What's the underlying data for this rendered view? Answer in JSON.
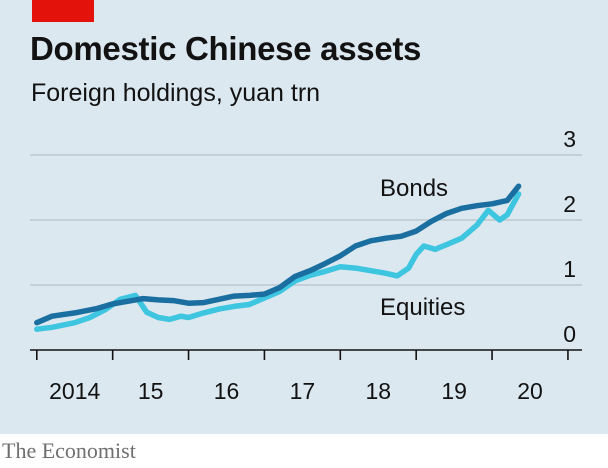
{
  "header": {
    "title": "Domestic Chinese assets",
    "subtitle": "Foreign holdings, yuan trn"
  },
  "source": "The Economist",
  "colors": {
    "bonds": "#1a6fa0",
    "equities": "#3ec5e0",
    "background": "#dce8ef",
    "accent": "#e3120b"
  },
  "chart_data": {
    "type": "line",
    "title": "Domestic Chinese assets",
    "subtitle": "Foreign holdings, yuan trn",
    "ylim": [
      0,
      3
    ],
    "yticks": [
      0,
      1,
      2,
      3
    ],
    "ytick_labels": [
      "0",
      "1",
      "2",
      "3"
    ],
    "xlim": [
      2013.95,
      2020.5
    ],
    "xticks": [
      2014,
      2015,
      2016,
      2017,
      2018,
      2019,
      2020
    ],
    "xtick_labels": [
      "2014",
      "15",
      "16",
      "17",
      "18",
      "19",
      "20"
    ],
    "grid": true,
    "series": [
      {
        "name": "Bonds",
        "x": [
          2014.0,
          2014.2,
          2014.5,
          2014.8,
          2015.0,
          2015.2,
          2015.4,
          2015.6,
          2015.8,
          2016.0,
          2016.2,
          2016.4,
          2016.6,
          2016.8,
          2017.0,
          2017.2,
          2017.4,
          2017.6,
          2017.8,
          2018.0,
          2018.2,
          2018.4,
          2018.6,
          2018.8,
          2019.0,
          2019.2,
          2019.4,
          2019.6,
          2019.8,
          2020.0,
          2020.2,
          2020.35
        ],
        "y": [
          0.42,
          0.52,
          0.57,
          0.64,
          0.71,
          0.75,
          0.79,
          0.77,
          0.76,
          0.72,
          0.73,
          0.78,
          0.83,
          0.84,
          0.86,
          0.96,
          1.13,
          1.22,
          1.33,
          1.45,
          1.6,
          1.68,
          1.72,
          1.75,
          1.83,
          1.98,
          2.1,
          2.18,
          2.22,
          2.25,
          2.3,
          2.52
        ]
      },
      {
        "name": "Equities",
        "x": [
          2014.0,
          2014.2,
          2014.5,
          2014.7,
          2014.9,
          2015.1,
          2015.3,
          2015.45,
          2015.6,
          2015.75,
          2015.9,
          2016.0,
          2016.2,
          2016.4,
          2016.6,
          2016.8,
          2017.0,
          2017.2,
          2017.4,
          2017.6,
          2017.8,
          2018.0,
          2018.2,
          2018.4,
          2018.6,
          2018.75,
          2018.9,
          2019.0,
          2019.1,
          2019.25,
          2019.4,
          2019.6,
          2019.8,
          2019.95,
          2020.1,
          2020.2,
          2020.35
        ],
        "y": [
          0.32,
          0.35,
          0.42,
          0.5,
          0.62,
          0.78,
          0.84,
          0.58,
          0.5,
          0.47,
          0.52,
          0.5,
          0.57,
          0.63,
          0.67,
          0.7,
          0.8,
          0.9,
          1.06,
          1.15,
          1.21,
          1.28,
          1.26,
          1.22,
          1.18,
          1.14,
          1.26,
          1.47,
          1.6,
          1.55,
          1.62,
          1.72,
          1.92,
          2.15,
          2.0,
          2.08,
          2.4
        ]
      }
    ],
    "annotations": [
      {
        "text": "Bonds",
        "series": "Bonds"
      },
      {
        "text": "Equities",
        "series": "Equities"
      }
    ]
  }
}
